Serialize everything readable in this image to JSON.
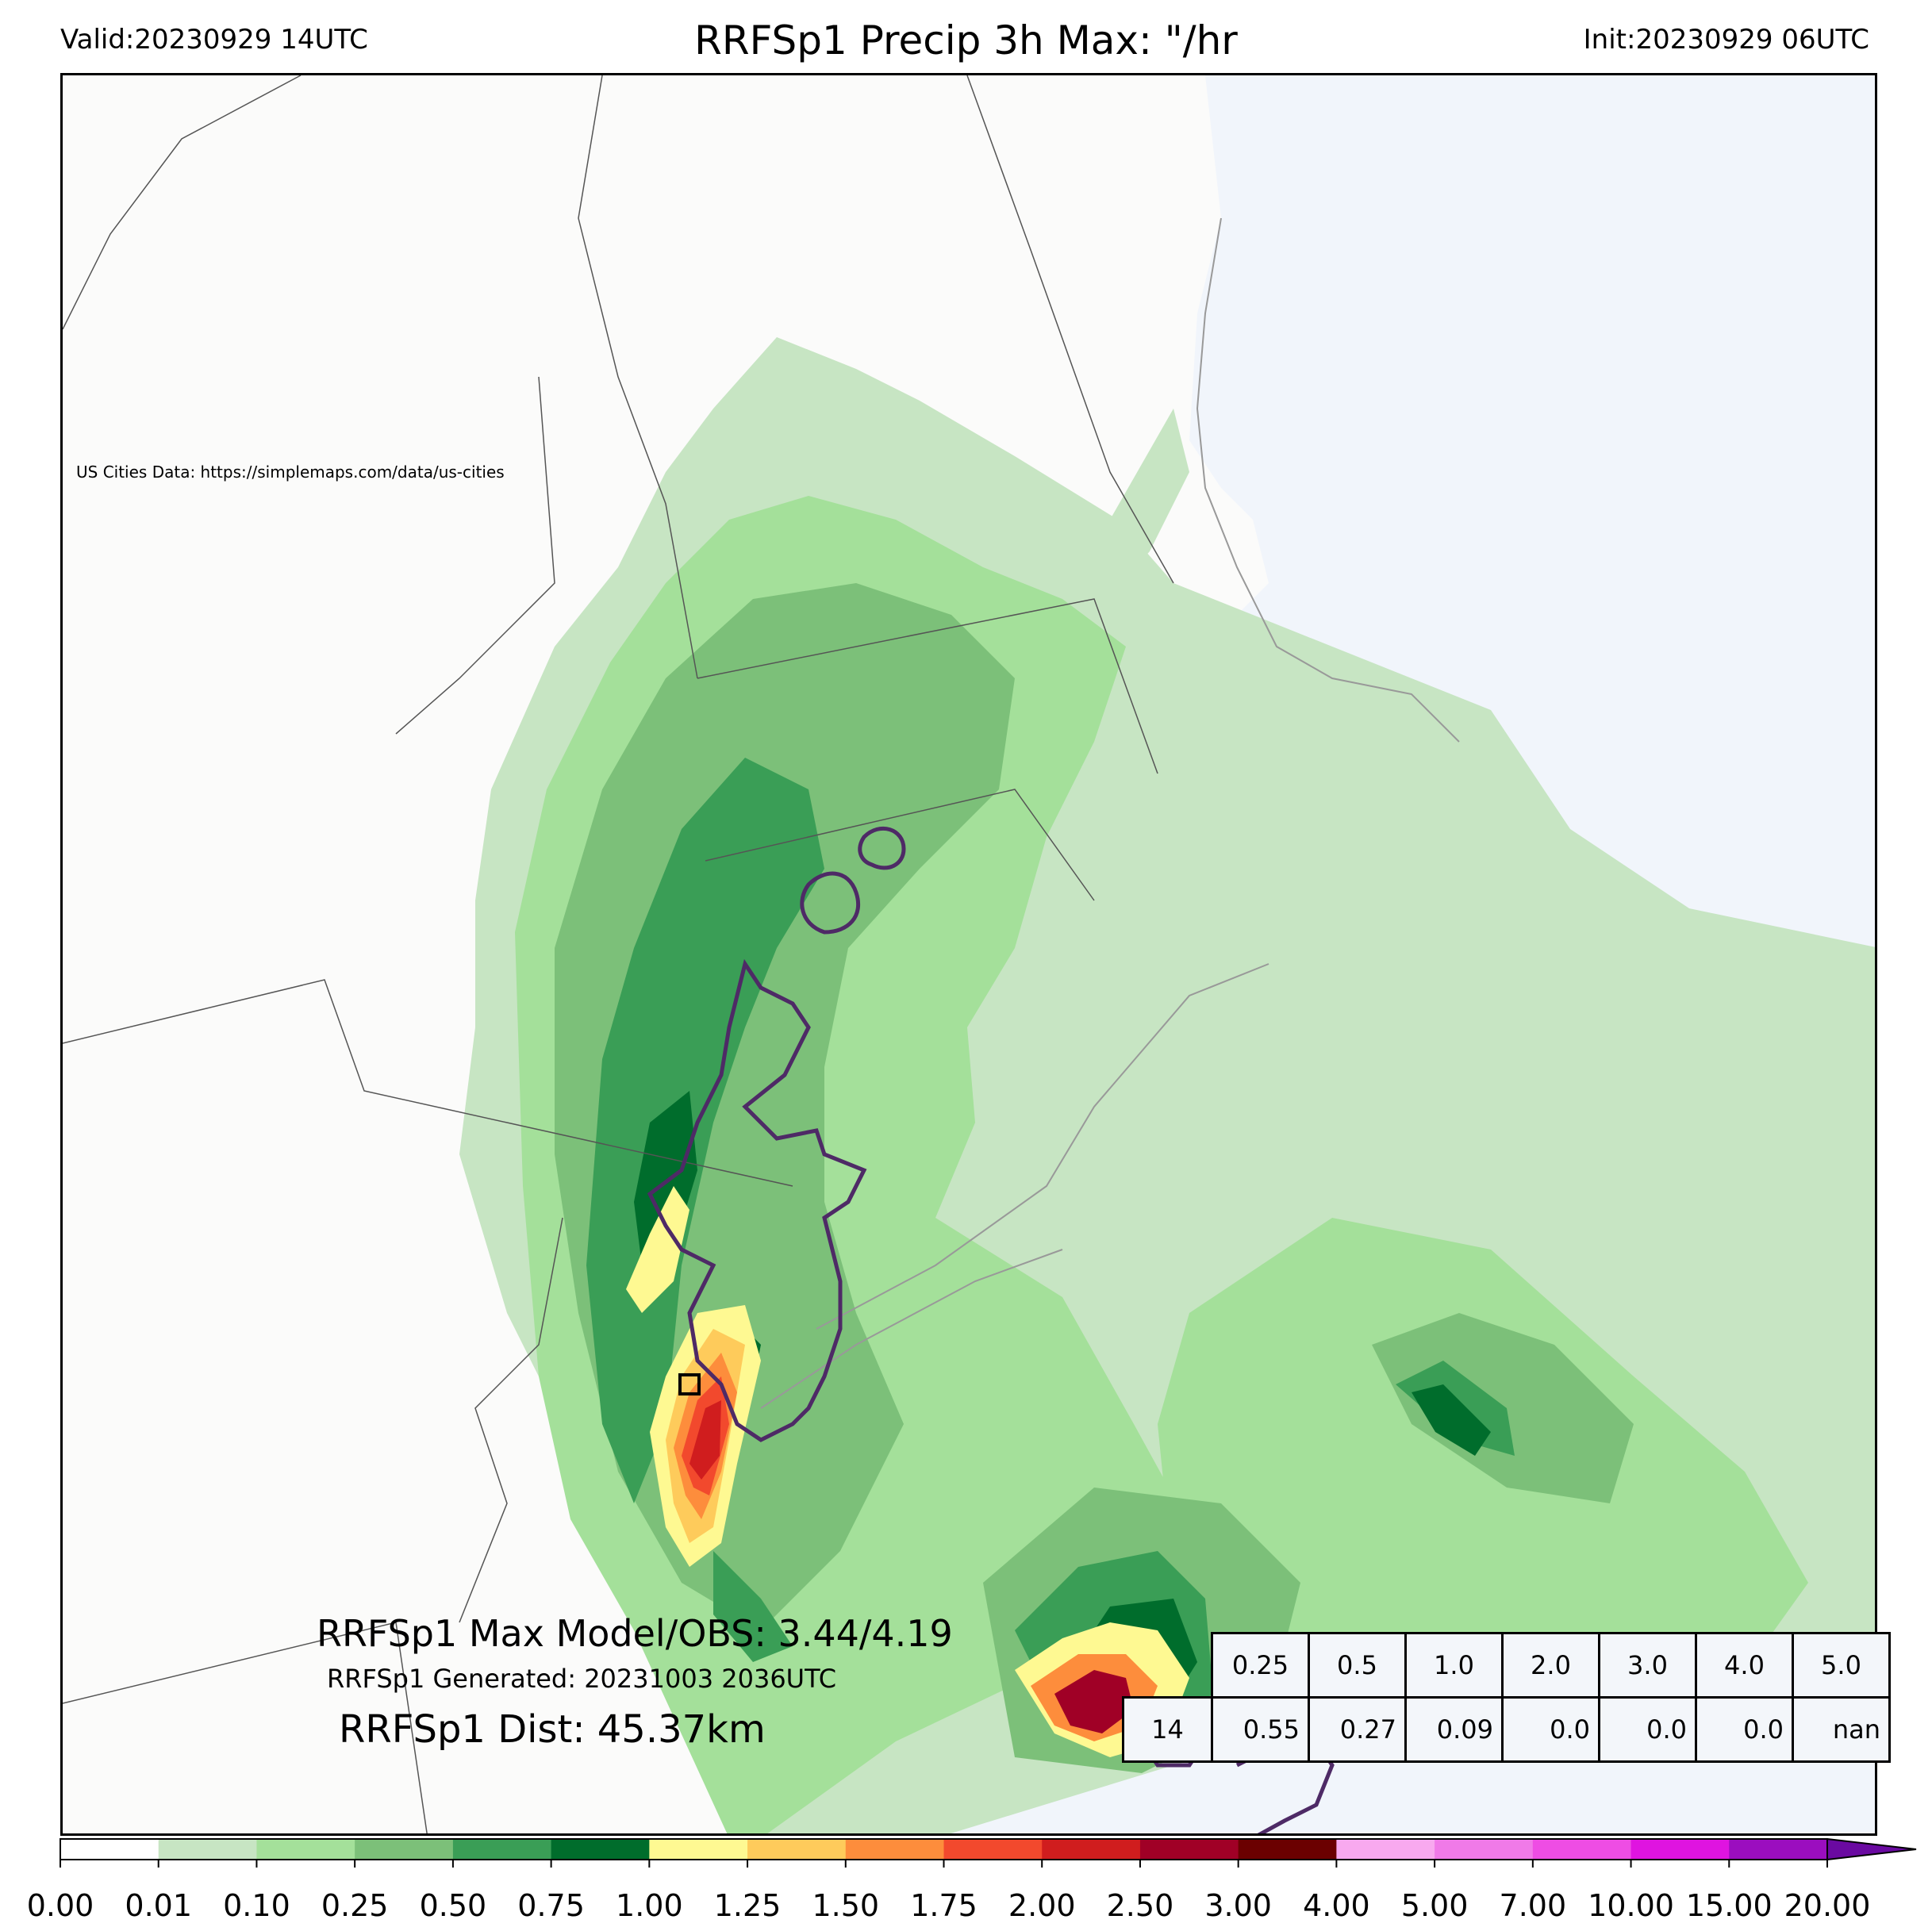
{
  "header": {
    "valid": "Valid:20230929 14UTC",
    "title": "RRFSp1 Precip 3h Max: \"/hr",
    "init": "Init:20230929 06UTC"
  },
  "map": {
    "attribution": "US Cities Data: https://simplemaps.com/data/us-cities",
    "ocean_color": "#f1f5fb",
    "land_color": "#fbfbfa"
  },
  "summary": {
    "max_line": "RRFSp1 Max Model/OBS: 3.44/4.19",
    "generated_line": "RRFSp1 Generated: 20231003 2036UTC",
    "dist_line": "RRFSp1 Dist: 45.37km"
  },
  "stats_table": {
    "thresholds": [
      "0.25",
      "0.5",
      "1.0",
      "2.0",
      "3.0",
      "4.0",
      "5.0"
    ],
    "row_label": "14",
    "values": [
      "0.55",
      "0.27",
      "0.09",
      "0.0",
      "0.0",
      "0.0",
      "nan"
    ]
  },
  "colorbar": {
    "ticks": [
      "0.00",
      "0.01",
      "0.10",
      "0.25",
      "0.50",
      "0.75",
      "1.00",
      "1.25",
      "1.50",
      "1.75",
      "2.00",
      "2.50",
      "3.00",
      "4.00",
      "5.00",
      "7.00",
      "10.00",
      "15.00",
      "20.00"
    ],
    "colors": [
      "#ffffff",
      "#c7e5c3",
      "#a4e09a",
      "#7cc079",
      "#3a9e56",
      "#006d2c",
      "#fef992",
      "#fecb5b",
      "#fd8d3c",
      "#f2492d",
      "#d01d1e",
      "#a00026",
      "#6b0000",
      "#f8a9ef",
      "#f07ae8",
      "#ee4de4",
      "#df14e0",
      "#9b0ebf"
    ],
    "extend_color": "#6a0aa1"
  }
}
